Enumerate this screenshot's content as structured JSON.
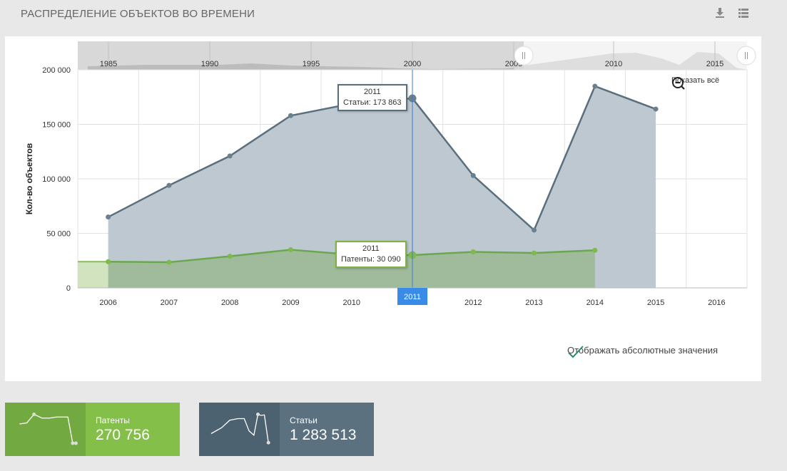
{
  "header": {
    "title": "РАСПРЕДЕЛЕНИЕ ОБЪЕКТОВ ВО ВРЕМЕНИ",
    "download_icon": "download-icon",
    "menu_icon": "list-icon"
  },
  "zoom": {
    "label": "Показать всё",
    "icon": "zoom-out-icon"
  },
  "absolute_toggle": {
    "label": "Отображать абсолютные значения",
    "checked": true,
    "color": "#2a8a6e"
  },
  "tooltips": {
    "articles": {
      "year": "2011",
      "text": "Статьи: 173 863"
    },
    "patents": {
      "year": "2011",
      "text": "Патенты: 30 090"
    }
  },
  "navigator": {
    "ticks": [
      "1985",
      "1990",
      "1995",
      "2000",
      "2005",
      "2010",
      "2015"
    ]
  },
  "chart_data": {
    "type": "area",
    "ylabel": "Кол-во объектов",
    "ylim": [
      0,
      200000
    ],
    "yticks": [
      "0",
      "50 000",
      "100 000",
      "150 000",
      "200 000"
    ],
    "x": [
      "2006",
      "2007",
      "2008",
      "2009",
      "2010",
      "2011",
      "2012",
      "2013",
      "2014",
      "2015",
      "2016"
    ],
    "highlight_x": "2011",
    "series": [
      {
        "name": "Статьи",
        "color": "#5a6f7e",
        "fill": "#bec8d0",
        "values": [
          65000,
          94000,
          121000,
          158000,
          169000,
          173863,
          103000,
          53000,
          185000,
          164000,
          null
        ]
      },
      {
        "name": "Патенты",
        "color": "#6aa84f",
        "fill": "#9bb992",
        "values": [
          24000,
          23500,
          29000,
          35000,
          30500,
          30090,
          33000,
          32000,
          34500,
          null,
          null
        ]
      }
    ]
  },
  "stats": [
    {
      "label": "Патенты",
      "value": "270 756",
      "color": "#72a940",
      "accent": "#84bf4a"
    },
    {
      "label": "Статьи",
      "value": "1 283 513",
      "color": "#4d6270",
      "accent": "#5b717f"
    }
  ]
}
